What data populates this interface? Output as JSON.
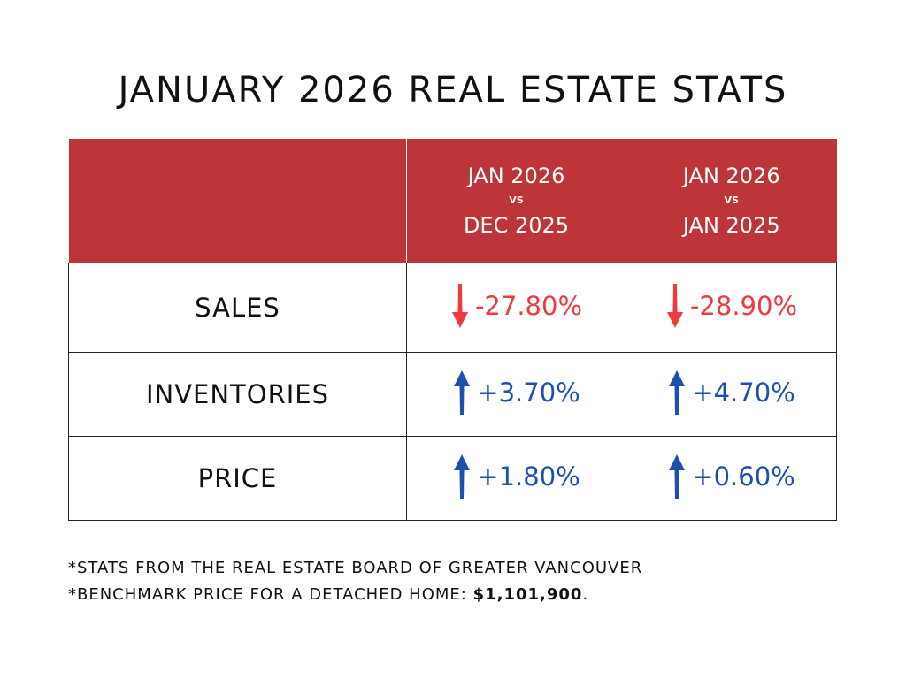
{
  "title": "JANUARY 2026 REAL ESTATE STATS",
  "header": {
    "empty": "",
    "col_a": {
      "line1": "JAN 2026",
      "vs": "VS",
      "line2": "DEC 2025"
    },
    "col_b": {
      "line1": "JAN 2026",
      "vs": "VS",
      "line2": "JAN 2025"
    }
  },
  "rows": [
    {
      "label": "SALES",
      "a": {
        "value": "-27.80%",
        "direction": "down"
      },
      "b": {
        "value": "-28.90%",
        "direction": "down"
      }
    },
    {
      "label": "INVENTORIES",
      "a": {
        "value": "+3.70%",
        "direction": "up"
      },
      "b": {
        "value": "+4.70%",
        "direction": "up"
      }
    },
    {
      "label": "PRICE",
      "a": {
        "value": "+1.80%",
        "direction": "up"
      },
      "b": {
        "value": "+0.60%",
        "direction": "up"
      }
    }
  ],
  "notes": {
    "line1": "*STATS FROM THE REAL ESTATE BOARD OF GREATER VANCOUVER",
    "line2_prefix": "*BENCHMARK PRICE FOR A DETACHED HOME: ",
    "line2_value": "$1,101,900",
    "line2_suffix": "."
  },
  "colors": {
    "header_bg": "#bd3538",
    "down": "#ef3b3f",
    "up": "#1f4fae"
  },
  "icons": {
    "down": "arrow-down-icon",
    "up": "arrow-up-icon"
  }
}
